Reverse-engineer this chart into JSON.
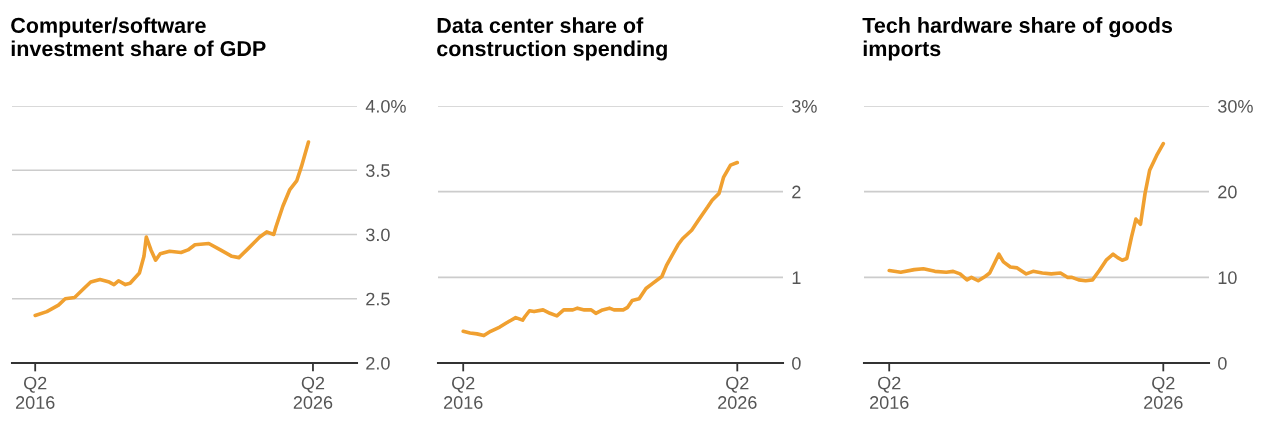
{
  "chart_data": [
    {
      "type": "line",
      "title": "Computer/software\ninvestment share of GDP",
      "color": "#f0a030",
      "grid": "y",
      "x": [
        "2016-04",
        "2016-09",
        "2017-02",
        "2017-05",
        "2017-09",
        "2018-01",
        "2018-04",
        "2018-08",
        "2018-12",
        "2019-02",
        "2019-04",
        "2019-07",
        "2019-09",
        "2020-01",
        "2020-03",
        "2020-04",
        "2020-06",
        "2020-08",
        "2020-10",
        "2021-02",
        "2021-07",
        "2021-10",
        "2022-01",
        "2022-07",
        "2022-12",
        "2023-05",
        "2023-08",
        "2023-12",
        "2024-05",
        "2024-08",
        "2024-11",
        "2024-12",
        "2025-03",
        "2025-06",
        "2025-09",
        "2025-11",
        "2026-02"
      ],
      "values": [
        2.37,
        2.4,
        2.45,
        2.5,
        2.51,
        2.58,
        2.63,
        2.65,
        2.63,
        2.61,
        2.64,
        2.61,
        2.62,
        2.7,
        2.83,
        2.98,
        2.88,
        2.8,
        2.85,
        2.87,
        2.86,
        2.88,
        2.92,
        2.93,
        2.88,
        2.83,
        2.82,
        2.89,
        2.98,
        3.02,
        3.0,
        3.06,
        3.22,
        3.35,
        3.42,
        3.53,
        3.72
      ],
      "xlim": [
        "2015-06",
        "2027-11"
      ],
      "xticks": [
        {
          "value": "2016-04",
          "label": "Q2\n2016"
        },
        {
          "value": "2026-04",
          "label": "Q2\n2026"
        }
      ],
      "ylim": [
        2.0,
        4.0
      ],
      "yticks": [
        {
          "value": 2.0,
          "label": "2.0"
        },
        {
          "value": 2.5,
          "label": "2.5"
        },
        {
          "value": 3.0,
          "label": "3.0"
        },
        {
          "value": 3.5,
          "label": "3.5"
        },
        {
          "value": 4.0,
          "label": "4.0%"
        }
      ]
    },
    {
      "type": "line",
      "title": "Data center share of\nconstruction spending",
      "color": "#f0a030",
      "grid": "y",
      "x": [
        "2016-04",
        "2016-07",
        "2016-10",
        "2017-01",
        "2017-04",
        "2017-08",
        "2017-11",
        "2018-03",
        "2018-06",
        "2018-07",
        "2018-09",
        "2018-11",
        "2019-03",
        "2019-06",
        "2019-09",
        "2019-12",
        "2020-04",
        "2020-06",
        "2020-09",
        "2020-12",
        "2021-02",
        "2021-05",
        "2021-08",
        "2021-10",
        "2022-02",
        "2022-04",
        "2022-06",
        "2022-09",
        "2022-12",
        "2023-03",
        "2023-07",
        "2023-09",
        "2024-02",
        "2024-04",
        "2024-08",
        "2024-11",
        "2025-03",
        "2025-05",
        "2025-08",
        "2025-10",
        "2026-01",
        "2026-04"
      ],
      "values": [
        0.37,
        0.35,
        0.34,
        0.32,
        0.37,
        0.42,
        0.47,
        0.53,
        0.5,
        0.54,
        0.61,
        0.6,
        0.62,
        0.58,
        0.55,
        0.62,
        0.62,
        0.64,
        0.62,
        0.62,
        0.58,
        0.62,
        0.64,
        0.62,
        0.62,
        0.65,
        0.73,
        0.75,
        0.87,
        0.93,
        1.01,
        1.14,
        1.38,
        1.45,
        1.55,
        1.67,
        1.82,
        1.9,
        1.98,
        2.17,
        2.31,
        2.34
      ],
      "xlim": [
        "2015-05",
        "2027-12"
      ],
      "xticks": [
        {
          "value": "2016-04",
          "label": "Q2\n2016"
        },
        {
          "value": "2026-04",
          "label": "Q2\n2026"
        }
      ],
      "ylim": [
        0,
        3
      ],
      "yticks": [
        {
          "value": 0,
          "label": "0"
        },
        {
          "value": 1,
          "label": "1"
        },
        {
          "value": 2,
          "label": "2"
        },
        {
          "value": 3,
          "label": "3%"
        }
      ]
    },
    {
      "type": "line",
      "title": "Tech hardware share of goods\nimports",
      "color": "#f0a030",
      "grid": "y",
      "x": [
        "2016-04",
        "2016-09",
        "2017-03",
        "2017-07",
        "2017-12",
        "2018-05",
        "2018-08",
        "2018-11",
        "2019-02",
        "2019-04",
        "2019-07",
        "2019-10",
        "2019-12",
        "2020-04",
        "2020-06",
        "2020-09",
        "2020-12",
        "2021-04",
        "2021-07",
        "2021-11",
        "2022-03",
        "2022-07",
        "2022-10",
        "2022-12",
        "2023-03",
        "2023-06",
        "2023-09",
        "2023-12",
        "2024-03",
        "2024-06",
        "2024-08",
        "2024-10",
        "2024-12",
        "2025-02",
        "2025-04",
        "2025-06",
        "2025-08",
        "2025-10",
        "2026-01",
        "2026-04"
      ],
      "values": [
        10.8,
        10.6,
        10.9,
        11.0,
        10.7,
        10.6,
        10.7,
        10.4,
        9.7,
        10.0,
        9.6,
        10.1,
        10.5,
        12.7,
        11.8,
        11.2,
        11.1,
        10.4,
        10.7,
        10.5,
        10.4,
        10.5,
        10.0,
        10.0,
        9.7,
        9.6,
        9.7,
        10.8,
        12.0,
        12.7,
        12.3,
        12.0,
        12.2,
        14.7,
        16.8,
        16.2,
        19.8,
        22.5,
        24.2,
        25.6
      ],
      "xlim": [
        "2015-05",
        "2027-12"
      ],
      "xticks": [
        {
          "value": "2016-04",
          "label": "Q2\n2016"
        },
        {
          "value": "2026-04",
          "label": "Q2\n2026"
        }
      ],
      "ylim": [
        0,
        30
      ],
      "yticks": [
        {
          "value": 0,
          "label": "0"
        },
        {
          "value": 10,
          "label": "10"
        },
        {
          "value": 20,
          "label": "20"
        },
        {
          "value": 30,
          "label": "30%"
        }
      ]
    }
  ]
}
